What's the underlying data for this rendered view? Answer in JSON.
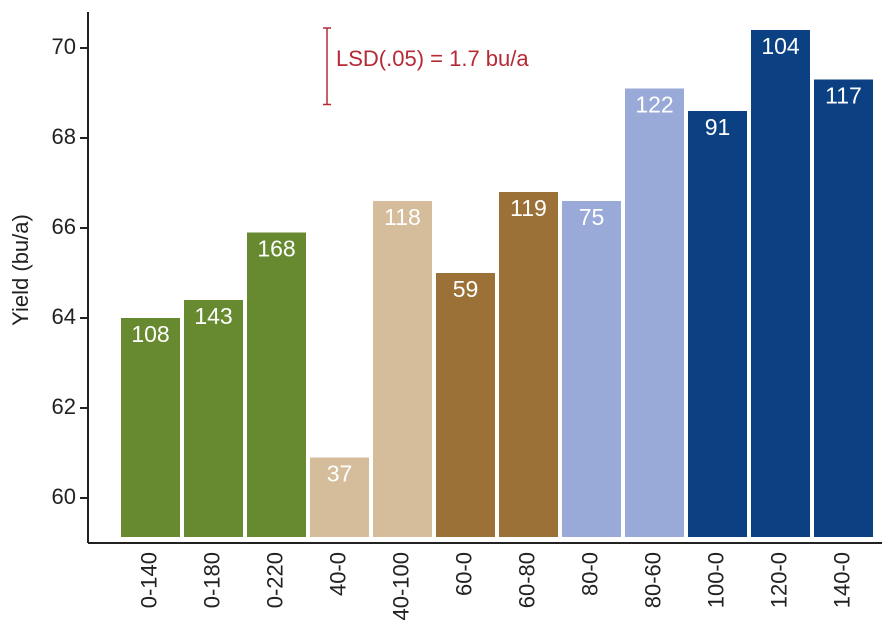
{
  "chart_data": {
    "type": "bar",
    "ylabel": "Yield (bu/a)",
    "categories": [
      "0-140",
      "0-180",
      "0-220",
      "40-0",
      "40-100",
      "60-0",
      "60-80",
      "80-0",
      "80-60",
      "100-0",
      "120-0",
      "140-0"
    ],
    "values": [
      64.0,
      64.4,
      65.9,
      60.9,
      66.6,
      65.0,
      66.8,
      66.6,
      69.1,
      68.6,
      70.4,
      69.3
    ],
    "colors": [
      "#678a30",
      "#678a30",
      "#678a30",
      "#d5bd9b",
      "#d5bd9b",
      "#9b7137",
      "#9b7137",
      "#9aaad8",
      "#9aaad8",
      "#0b4182",
      "#0b4182",
      "#0b4182"
    ],
    "bar_labels": [
      "108",
      "143",
      "168",
      "37",
      "118",
      "59",
      "119",
      "75",
      "122",
      "91",
      "104",
      "117"
    ],
    "lsd": {
      "label": "LSD(.05) = 1.7 bu/a",
      "value": 1.7,
      "color": "#b52a35"
    },
    "ylim": [
      59,
      70.8
    ],
    "yticks": [
      60,
      62,
      64,
      66,
      68,
      70
    ]
  }
}
